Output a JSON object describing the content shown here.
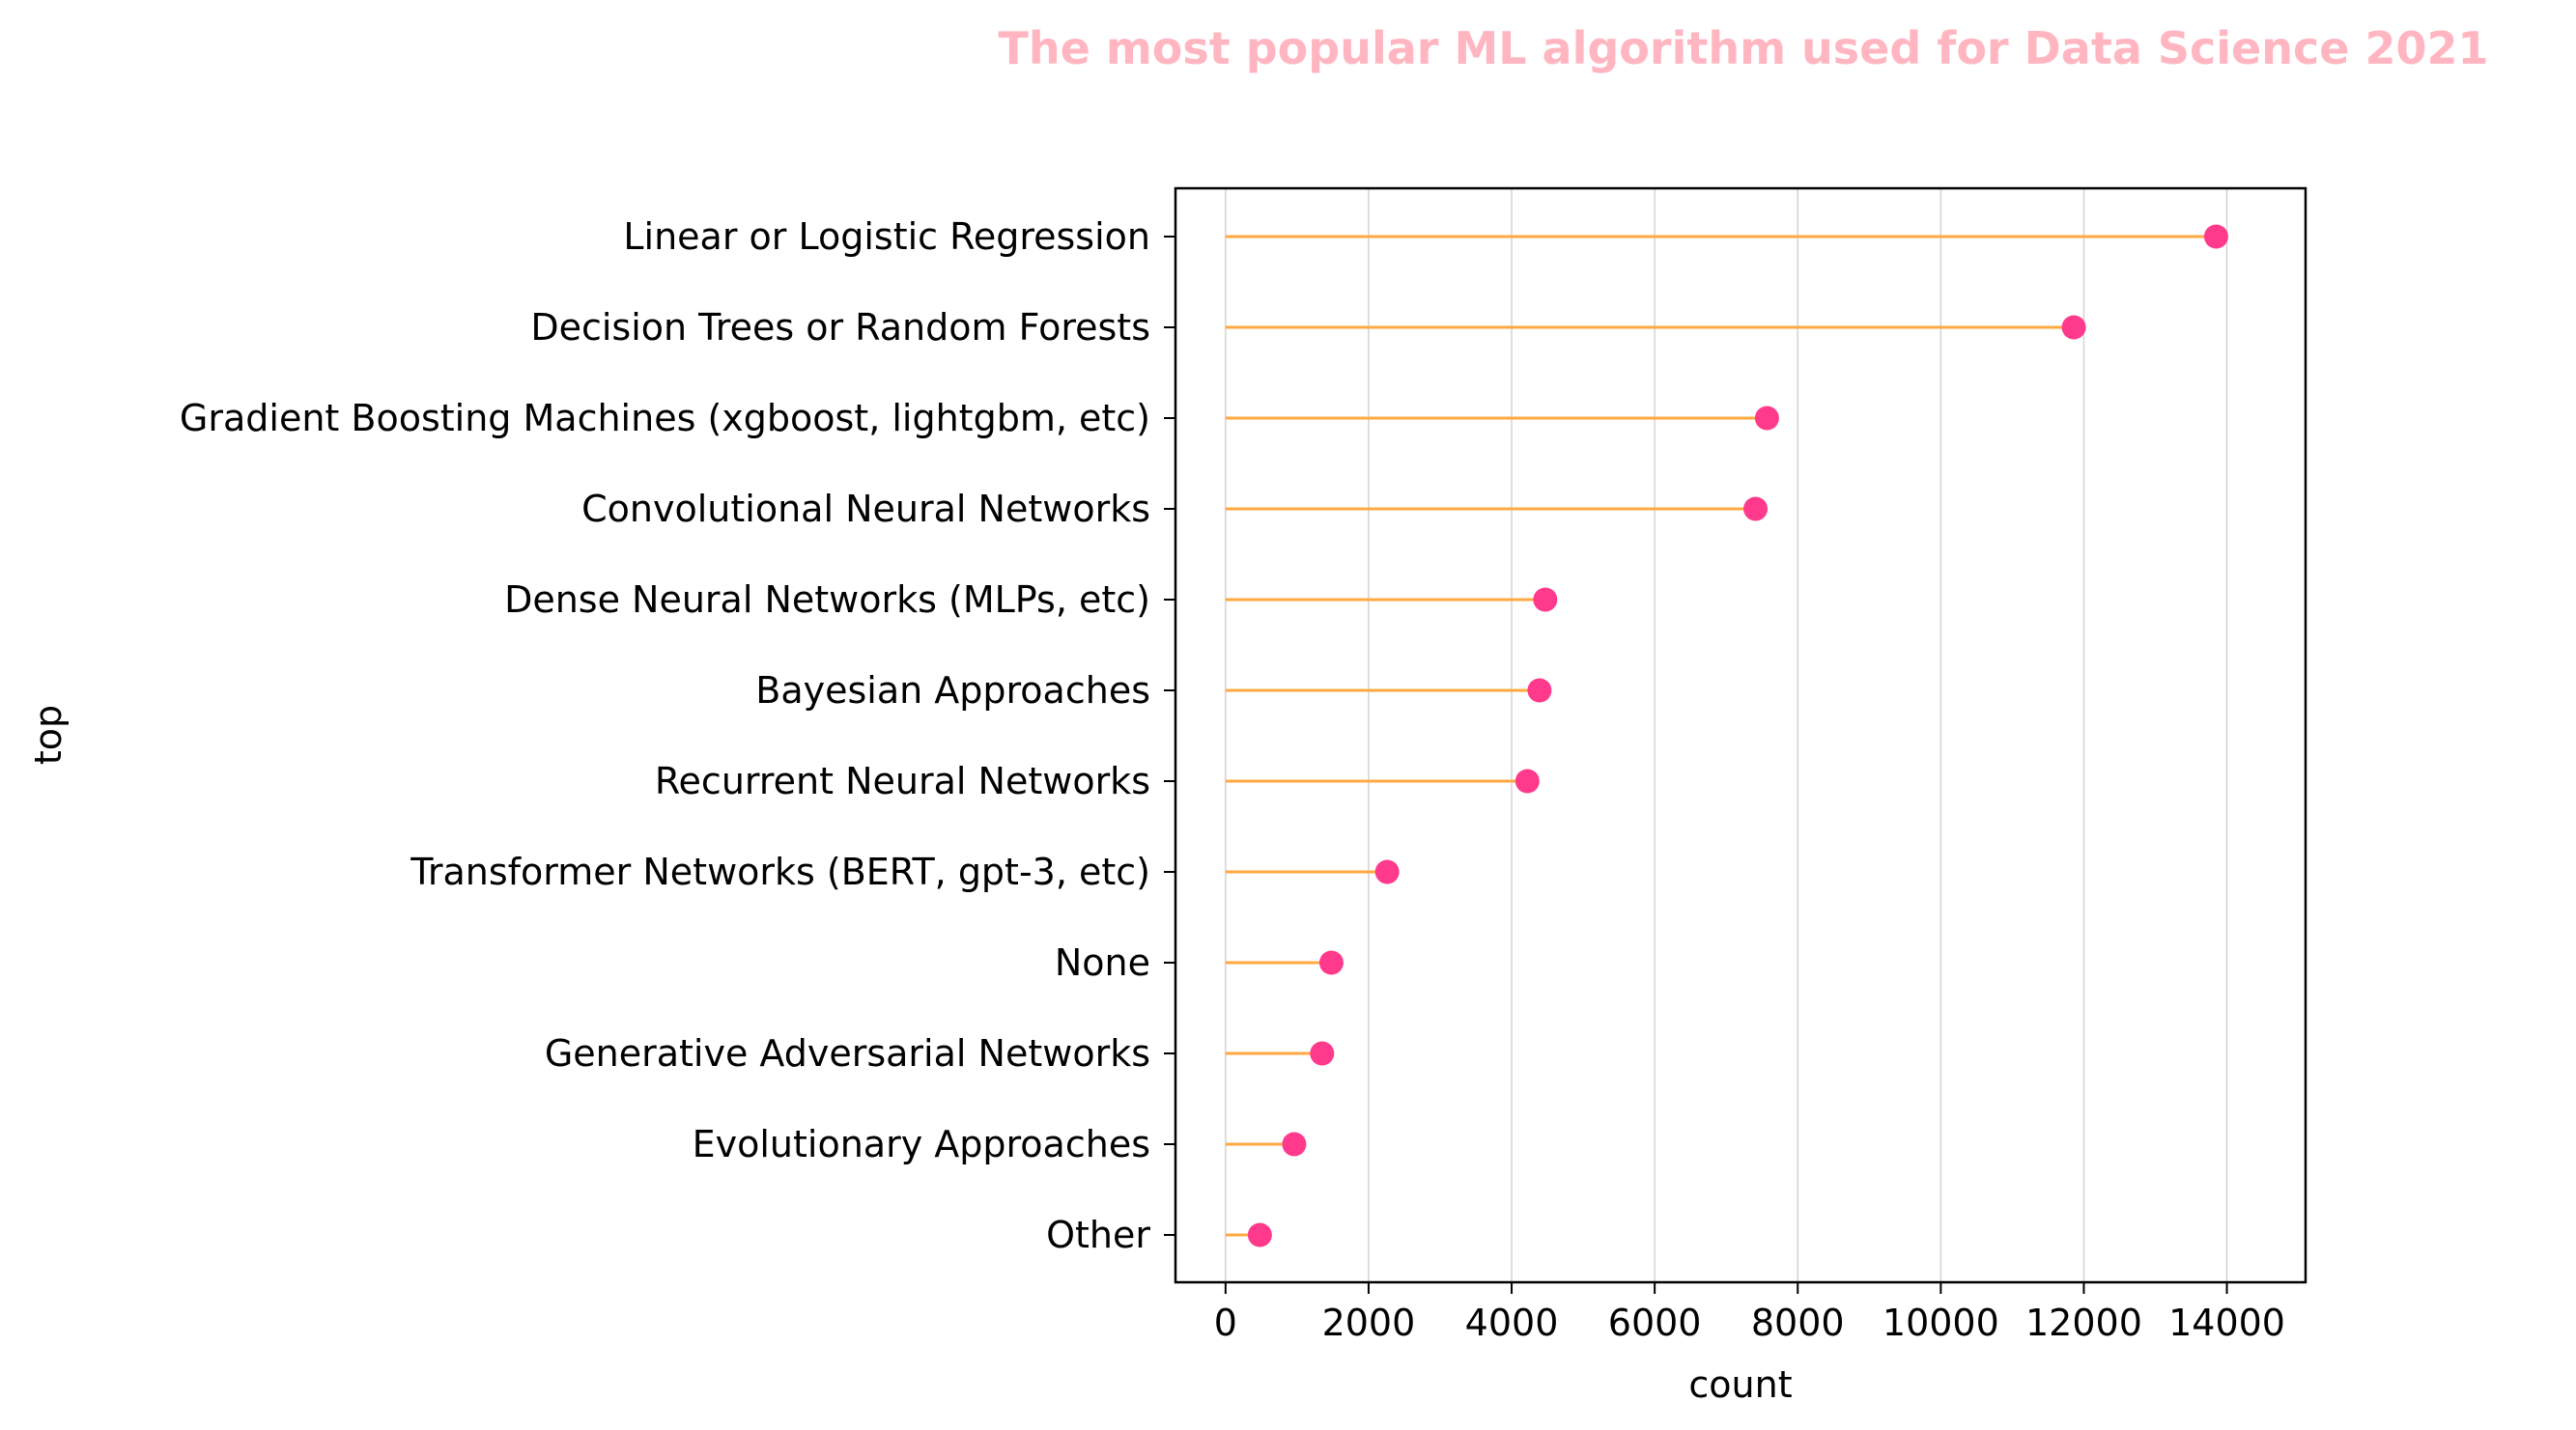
{
  "chart_data": {
    "type": "lollipop",
    "title": "The most popular ML algorithm used for Data Science 2021",
    "xlabel": "count",
    "ylabel": "top",
    "xlim": [
      -700,
      15100
    ],
    "xticks": [
      0,
      2000,
      4000,
      6000,
      8000,
      10000,
      12000,
      14000
    ],
    "grid": "vertical",
    "orientation": "horizontal",
    "categories": [
      "Linear or Logistic Regression",
      "Decision Trees or Random Forests",
      "Gradient Boosting Machines (xgboost, lightgbm, etc)",
      "Convolutional Neural Networks",
      "Dense Neural Networks (MLPs, etc)",
      "Bayesian Approaches",
      "Recurrent Neural Networks",
      "Transformer Networks (BERT, gpt-3, etc)",
      "None",
      "Generative Adversarial Networks",
      "Evolutionary Approaches",
      "Other"
    ],
    "values": [
      13850,
      11860,
      7570,
      7410,
      4470,
      4390,
      4220,
      2260,
      1480,
      1350,
      960,
      480
    ],
    "colors": {
      "title": "#ffb6c1",
      "stem": "#ffa940",
      "marker": "#ff3a8c",
      "grid": "#d3d3d3",
      "axis": "#000000"
    }
  }
}
